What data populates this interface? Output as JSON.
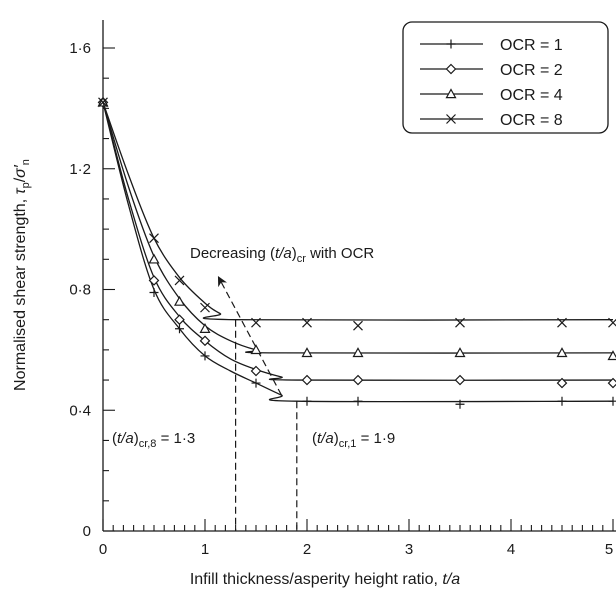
{
  "chart_data": {
    "type": "line",
    "xlabel_main": "Infill thickness/asperity height ratio, ",
    "xlabel_var": "t/a",
    "ylabel_main": "Normalised shear strength, ",
    "ylabel_tau": "τ",
    "ylabel_tau_sub": "p",
    "ylabel_slash": "/",
    "ylabel_sigma": "σ′",
    "ylabel_sigma_sub": "n",
    "xlim": [
      0,
      5
    ],
    "ylim": [
      0,
      1.6
    ],
    "x_major_ticks": [
      0,
      1,
      2,
      3,
      4,
      5
    ],
    "x_tick_labels": [
      "0",
      "1",
      "2",
      "3",
      "4",
      "5"
    ],
    "x_minor_step": 0.1,
    "y_major_ticks": [
      0,
      0.4,
      0.8,
      1.2,
      1.6
    ],
    "y_tick_labels": [
      "0",
      "0·4",
      "0·8",
      "1·2",
      "1·6"
    ],
    "y_minor_step": 0.1,
    "legend_position": "top-right",
    "series": [
      {
        "name": "OCR = 1",
        "marker": "plus",
        "points": [
          [
            0,
            1.42
          ],
          [
            0.5,
            0.79
          ],
          [
            0.75,
            0.67
          ],
          [
            1.0,
            0.58
          ],
          [
            1.5,
            0.49
          ],
          [
            2.0,
            0.43
          ],
          [
            2.5,
            0.43
          ],
          [
            3.5,
            0.42
          ],
          [
            4.5,
            0.43
          ],
          [
            5.0,
            0.43
          ]
        ],
        "curve": [
          [
            0,
            1.42
          ],
          [
            0.25,
            1.08
          ],
          [
            0.5,
            0.8
          ],
          [
            0.75,
            0.67
          ],
          [
            1.0,
            0.58
          ],
          [
            1.25,
            0.53
          ],
          [
            1.5,
            0.49
          ],
          [
            1.75,
            0.45
          ],
          [
            1.9,
            0.43
          ],
          [
            5.0,
            0.43
          ]
        ]
      },
      {
        "name": "OCR = 2",
        "marker": "diamond",
        "points": [
          [
            0,
            1.42
          ],
          [
            0.5,
            0.83
          ],
          [
            0.75,
            0.7
          ],
          [
            1.0,
            0.63
          ],
          [
            1.5,
            0.53
          ],
          [
            2.0,
            0.5
          ],
          [
            2.5,
            0.5
          ],
          [
            3.5,
            0.5
          ],
          [
            4.5,
            0.49
          ],
          [
            5.0,
            0.49
          ]
        ],
        "curve": [
          [
            0,
            1.42
          ],
          [
            0.25,
            1.1
          ],
          [
            0.5,
            0.84
          ],
          [
            0.75,
            0.71
          ],
          [
            1.0,
            0.63
          ],
          [
            1.25,
            0.57
          ],
          [
            1.5,
            0.535
          ],
          [
            1.75,
            0.51
          ],
          [
            1.9,
            0.5
          ],
          [
            5.0,
            0.5
          ]
        ]
      },
      {
        "name": "OCR = 4",
        "marker": "triangle",
        "points": [
          [
            0,
            1.42
          ],
          [
            0.5,
            0.9
          ],
          [
            0.75,
            0.76
          ],
          [
            1.0,
            0.67
          ],
          [
            1.5,
            0.6
          ],
          [
            2.0,
            0.59
          ],
          [
            2.5,
            0.59
          ],
          [
            3.5,
            0.59
          ],
          [
            4.5,
            0.59
          ],
          [
            5.0,
            0.58
          ]
        ],
        "curve": [
          [
            0,
            1.42
          ],
          [
            0.25,
            1.14
          ],
          [
            0.5,
            0.91
          ],
          [
            0.75,
            0.77
          ],
          [
            1.0,
            0.68
          ],
          [
            1.25,
            0.63
          ],
          [
            1.5,
            0.6
          ],
          [
            1.7,
            0.59
          ],
          [
            5.0,
            0.59
          ]
        ]
      },
      {
        "name": "OCR = 8",
        "marker": "cross",
        "points": [
          [
            0,
            1.42
          ],
          [
            0.5,
            0.97
          ],
          [
            0.75,
            0.83
          ],
          [
            1.0,
            0.74
          ],
          [
            1.5,
            0.69
          ],
          [
            2.0,
            0.69
          ],
          [
            2.5,
            0.68
          ],
          [
            3.5,
            0.69
          ],
          [
            4.5,
            0.69
          ],
          [
            5.0,
            0.69
          ]
        ],
        "curve": [
          [
            0,
            1.42
          ],
          [
            0.25,
            1.18
          ],
          [
            0.5,
            0.97
          ],
          [
            0.75,
            0.84
          ],
          [
            1.0,
            0.755
          ],
          [
            1.15,
            0.72
          ],
          [
            1.3,
            0.7
          ],
          [
            5.0,
            0.7
          ]
        ]
      }
    ],
    "critical_lines": [
      {
        "x": 1.3,
        "y": 0.7
      },
      {
        "x": 1.9,
        "y": 0.43
      }
    ],
    "trend_arrow": {
      "from": [
        1.75,
        0.45
      ],
      "to": [
        1.15,
        0.83
      ]
    },
    "annotations": {
      "decreasing": {
        "prefix": "Decreasing (",
        "var": "t/a",
        "close": ")",
        "sub": "cr",
        "suffix": " with OCR"
      },
      "tacr8": {
        "open": "(",
        "var": "t/a",
        "close": ")",
        "sub": "cr,8",
        "value": " = 1·3"
      },
      "tacr1": {
        "open": "(",
        "var": "t/a",
        "close": ")",
        "sub": "cr,1",
        "value": " = 1·9"
      }
    }
  }
}
